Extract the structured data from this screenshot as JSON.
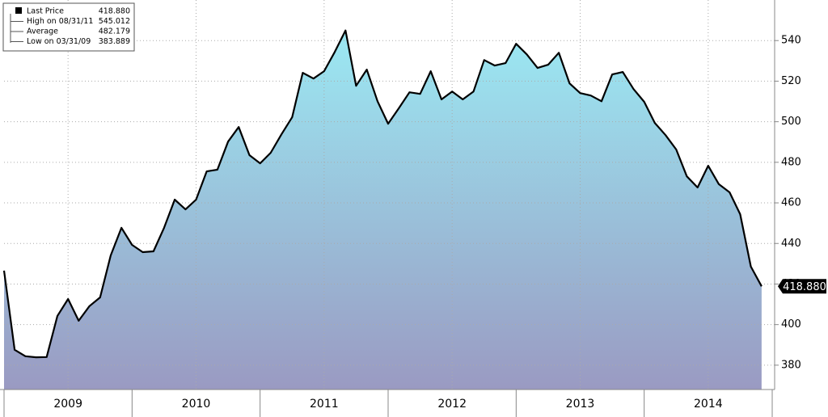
{
  "chart_data": {
    "type": "area",
    "x": [
      2009,
      2009.083,
      2009.167,
      2009.25,
      2009.333,
      2009.417,
      2009.5,
      2009.583,
      2009.667,
      2009.75,
      2009.833,
      2009.917,
      2010,
      2010.083,
      2010.167,
      2010.25,
      2010.333,
      2010.417,
      2010.5,
      2010.583,
      2010.667,
      2010.75,
      2010.833,
      2010.917,
      2011,
      2011.083,
      2011.167,
      2011.25,
      2011.333,
      2011.417,
      2011.5,
      2011.583,
      2011.667,
      2011.75,
      2011.833,
      2011.917,
      2012,
      2012.083,
      2012.167,
      2012.25,
      2012.333,
      2012.417,
      2012.5,
      2012.583,
      2012.667,
      2012.75,
      2012.833,
      2012.917,
      2013,
      2013.083,
      2013.167,
      2013.25,
      2013.333,
      2013.417,
      2013.5,
      2013.583,
      2013.667,
      2013.75,
      2013.833,
      2013.917,
      2014,
      2014.083,
      2014.167,
      2014.25,
      2014.333,
      2014.417,
      2014.5,
      2014.583,
      2014.667,
      2014.75,
      2014.833,
      2014.917
    ],
    "series": [
      {
        "name": "Last Price",
        "color": "#000000",
        "values": [
          426.6,
          387.6,
          384.4,
          383.9,
          384,
          404.3,
          412.6,
          401.9,
          409.1,
          413.4,
          434.1,
          447.7,
          439.3,
          435.7,
          436.1,
          447.7,
          461.6,
          456.8,
          461.6,
          475.5,
          476.4,
          490.2,
          497.4,
          483.5,
          479.5,
          484.7,
          493.8,
          502.2,
          524.1,
          521.3,
          524.9,
          534.4,
          545.0,
          517.7,
          525.7,
          510.1,
          499,
          506.6,
          514.5,
          513.7,
          524.9,
          511,
          514.9,
          511,
          514.9,
          530.4,
          527.7,
          528.9,
          538.4,
          533.2,
          526.5,
          528.1,
          534,
          518.9,
          514.1,
          512.9,
          510.1,
          523.3,
          524.5,
          516.1,
          509.8,
          499.4,
          493.4,
          486.3,
          473.1,
          467.6,
          478.3,
          469.2,
          465.2,
          454.4,
          428.6,
          418.88
        ]
      }
    ],
    "fill_top": "#9be9f3",
    "fill_bottom": "#9a9ac2",
    "xlim": [
      2009,
      2015
    ],
    "xticks": [
      {
        "value": 2009.5,
        "label": "2009"
      },
      {
        "value": 2010.5,
        "label": "2010"
      },
      {
        "value": 2011.5,
        "label": "2011"
      },
      {
        "value": 2012.5,
        "label": "2012"
      },
      {
        "value": 2013.5,
        "label": "2013"
      },
      {
        "value": 2014.5,
        "label": "2014"
      }
    ],
    "ylim": [
      368,
      560
    ],
    "yticks": [
      380,
      400,
      420,
      440,
      460,
      480,
      500,
      520,
      540
    ],
    "grid": true,
    "legend": [
      {
        "label": "Last Price",
        "value": "418.880"
      },
      {
        "label": "High on 08/31/11",
        "value": "545.012"
      },
      {
        "label": "Average",
        "value": "482.179"
      },
      {
        "label": "Low on 03/31/09",
        "value": "383.889"
      }
    ]
  }
}
